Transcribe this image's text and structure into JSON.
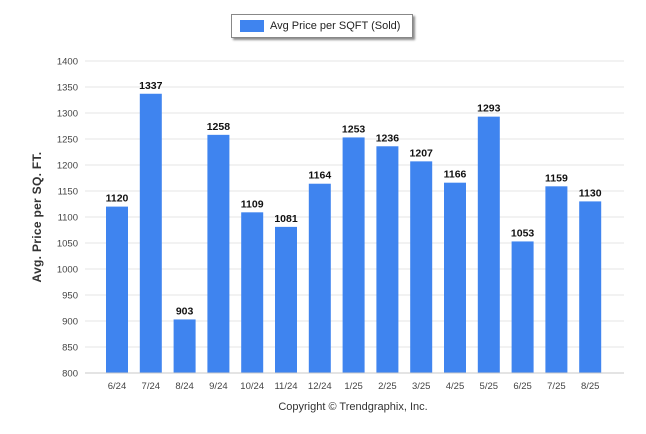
{
  "legend": {
    "label": "Avg Price per SQFT (Sold)",
    "color": "#3f84ef"
  },
  "footer": {
    "copyright": "Copyright © Trendgraphix, Inc."
  },
  "chart_data": {
    "type": "bar",
    "categories": [
      "6/24",
      "7/24",
      "8/24",
      "9/24",
      "10/24",
      "11/24",
      "12/24",
      "1/25",
      "2/25",
      "3/25",
      "4/25",
      "5/25",
      "6/25",
      "7/25",
      "8/25"
    ],
    "series": [
      {
        "name": "Avg Price per SQFT (Sold)",
        "values": [
          1120,
          1337,
          903,
          1258,
          1109,
          1081,
          1164,
          1253,
          1236,
          1207,
          1166,
          1293,
          1053,
          1159,
          1130
        ]
      }
    ],
    "ylabel": "Avg. Price per SQ. FT.",
    "xlabel": "",
    "ylim": [
      800,
      1400
    ],
    "yticks": [
      800,
      850,
      900,
      950,
      1000,
      1050,
      1100,
      1150,
      1200,
      1250,
      1300,
      1350,
      1400
    ],
    "grid": true,
    "legend_position": "top-center",
    "bar_color": "#3f84ef",
    "data_labels": true
  }
}
